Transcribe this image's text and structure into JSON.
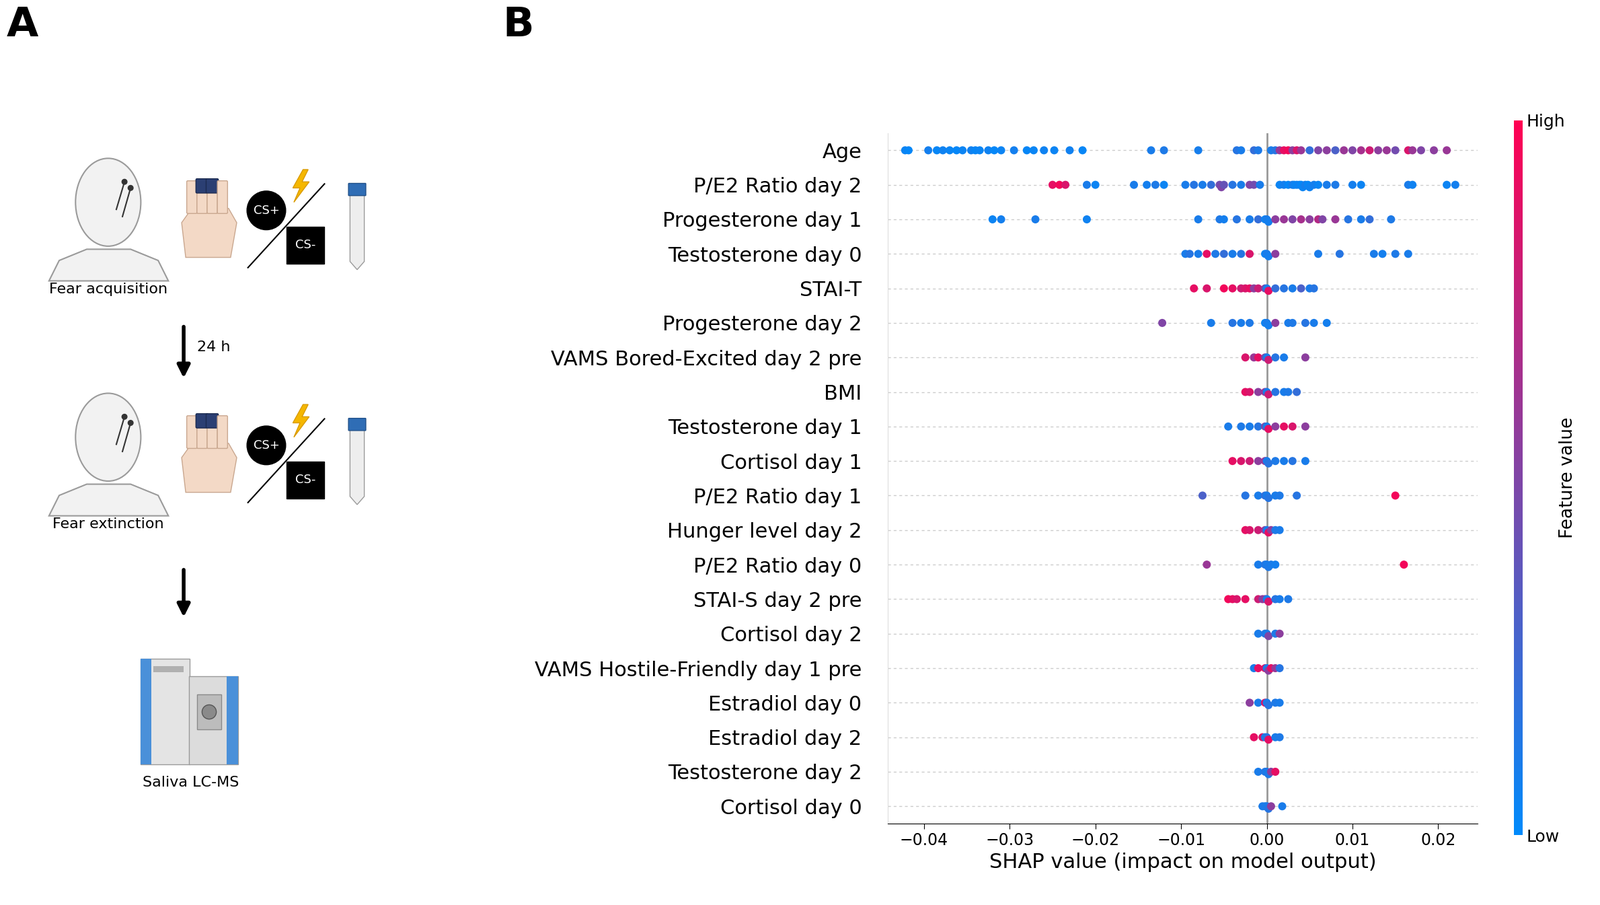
{
  "diagram": {
    "panel_label": "A",
    "stages": [
      {
        "label": "Fear acquisition",
        "cs_plus": "CS+",
        "cs_minus": "CS-"
      },
      {
        "label": "Fear extinction",
        "cs_plus": "CS+",
        "cs_minus": "CS-"
      }
    ],
    "interval": "24 h",
    "analysis": "Saliva LC-MS"
  },
  "chart_data": {
    "type": "scatter",
    "panel_label": "B",
    "xlabel": "SHAP value (impact on model output)",
    "xlim": [
      -0.0442,
      0.0246
    ],
    "xticks": [
      {
        "value": -0.04,
        "label": "−0.04"
      },
      {
        "value": -0.03,
        "label": "−0.03"
      },
      {
        "value": -0.02,
        "label": "−0.02"
      },
      {
        "value": -0.01,
        "label": "−0.01"
      },
      {
        "value": 0,
        "label": "0.00"
      },
      {
        "value": 0.01,
        "label": "0.01"
      },
      {
        "value": 0.02,
        "label": "0.02"
      }
    ],
    "grid": true,
    "categories": [
      "Age",
      "P/E2 Ratio day 2",
      "Progesterone day 1",
      "Testosterone day 0",
      "STAI-T",
      "Progesterone day 2",
      "VAMS Bored-Excited day 2 pre",
      "BMI",
      "Testosterone day 1",
      "Cortisol day 1",
      "P/E2 Ratio day 1",
      "Hunger level day 2",
      "P/E2 Ratio day 0",
      "STAI-S day 2 pre",
      "Cortisol day 2",
      "VAMS Hostile-Friendly day 1 pre",
      "Estradiol day 0",
      "Estradiol day 2",
      "Testosterone day 2",
      "Cortisol day 0"
    ],
    "shap_values": [
      [
        -0.0422,
        -0.0418,
        -0.0395,
        -0.0385,
        -0.0378,
        -0.037,
        -0.0362,
        -0.0355,
        -0.0345,
        -0.034,
        -0.0335,
        -0.0325,
        -0.0318,
        -0.031,
        -0.0295,
        -0.028,
        -0.0272,
        -0.026,
        -0.0248,
        -0.023,
        -0.0215,
        -0.0135,
        -0.012,
        -0.008,
        -0.0035,
        -0.003,
        -0.0015,
        -0.001,
        0.0005,
        0.001,
        0.0015,
        0.002,
        0.0025,
        0.003,
        0.0035,
        0.004,
        0.005,
        0.006,
        0.007,
        0.008,
        0.009,
        0.01,
        0.011,
        0.012,
        0.013,
        0.014,
        0.015,
        0.0165,
        0.017,
        0.018,
        0.0195,
        0.021
      ],
      [
        -0.025,
        -0.0242,
        -0.0235,
        -0.021,
        -0.02,
        -0.0155,
        -0.014,
        -0.013,
        -0.012,
        -0.0095,
        -0.0085,
        -0.0075,
        -0.0065,
        -0.0055,
        -0.0053,
        -0.005,
        -0.004,
        -0.003,
        -0.002,
        -0.0015,
        -0.0008,
        0.0015,
        0.002,
        0.0025,
        0.003,
        0.0032,
        0.0035,
        0.0038,
        0.004,
        0.0042,
        0.0045,
        0.0048,
        0.005,
        0.0055,
        0.006,
        0.007,
        0.008,
        0.01,
        0.011,
        0.0165,
        0.017,
        0.021,
        0.022
      ],
      [
        -0.032,
        -0.031,
        -0.027,
        -0.021,
        -0.008,
        -0.0055,
        -0.005,
        -0.0035,
        -0.002,
        -0.001,
        -0.0002,
        0.0,
        0.0002,
        0.001,
        0.002,
        0.003,
        0.004,
        0.005,
        0.006,
        0.0065,
        0.008,
        0.0095,
        0.011,
        0.012,
        0.0145
      ],
      [
        -0.0095,
        -0.009,
        -0.008,
        -0.007,
        -0.006,
        -0.005,
        -0.004,
        -0.003,
        -0.002,
        -0.0002,
        0.0,
        0.0002,
        0.001,
        0.006,
        0.0085,
        0.0125,
        0.0135,
        0.015,
        0.0165
      ],
      [
        -0.0085,
        -0.007,
        -0.005,
        -0.004,
        -0.003,
        -0.0025,
        -0.002,
        -0.0015,
        -0.001,
        -0.0002,
        0.0,
        0.0002,
        0.001,
        0.002,
        0.003,
        0.004,
        0.005,
        0.0055
      ],
      [
        -0.0122,
        -0.0065,
        -0.004,
        -0.003,
        -0.002,
        -0.0002,
        0.0,
        0.0002,
        0.001,
        0.0025,
        0.003,
        0.0045,
        0.0055,
        0.007
      ],
      [
        -0.0025,
        -0.0015,
        -0.001,
        -0.0002,
        0.0,
        0.0002,
        0.001,
        0.002,
        0.0045
      ],
      [
        -0.0025,
        -0.002,
        -0.001,
        -0.0002,
        0.0,
        0.0002,
        0.001,
        0.002,
        0.0025,
        0.0035
      ],
      [
        -0.0045,
        -0.003,
        -0.002,
        -0.001,
        -0.0002,
        0.0,
        0.0002,
        0.001,
        0.002,
        0.003,
        0.0045
      ],
      [
        -0.004,
        -0.003,
        -0.002,
        -0.001,
        -0.0002,
        0.0,
        0.0002,
        0.001,
        0.002,
        0.003,
        0.0045
      ],
      [
        -0.0075,
        -0.0025,
        -0.001,
        -0.0002,
        0.0,
        0.0002,
        0.001,
        0.0015,
        0.0035,
        0.015
      ],
      [
        -0.0025,
        -0.002,
        -0.001,
        -0.0002,
        0.0,
        0.0002,
        0.0005,
        0.001,
        0.0015
      ],
      [
        -0.007,
        -0.001,
        -0.0002,
        0.0,
        0.0002,
        0.0005,
        0.001,
        0.016
      ],
      [
        -0.0045,
        -0.004,
        -0.0035,
        -0.0025,
        -0.001,
        -0.0005,
        -0.0002,
        0.0,
        0.0002,
        0.001,
        0.0015,
        0.0025
      ],
      [
        -0.001,
        -0.0002,
        0.0,
        0.0002,
        0.001,
        0.0015
      ],
      [
        -0.0015,
        -0.001,
        -0.0002,
        0.0,
        0.0002,
        0.0005,
        0.001,
        0.0015
      ],
      [
        -0.002,
        -0.001,
        -0.0002,
        0.0,
        0.0002,
        0.001,
        0.0015
      ],
      [
        -0.0015,
        -0.0005,
        -0.0002,
        0.0,
        0.0002,
        0.001,
        0.0015
      ],
      [
        -0.001,
        -0.0002,
        0.0,
        0.0002,
        0.0005,
        0.001
      ],
      [
        -0.0005,
        -0.0002,
        0.0,
        0.0002,
        0.0005,
        0.0018
      ]
    ],
    "feature_values": [
      [
        0.05,
        0.02,
        0.08,
        0.03,
        0.06,
        0.04,
        0.02,
        0.05,
        0.07,
        0.03,
        0.04,
        0.06,
        0.02,
        0.05,
        0.08,
        0.03,
        0.04,
        0.06,
        0.05,
        0.07,
        0.03,
        0.1,
        0.12,
        0.09,
        0.15,
        0.1,
        0.2,
        0.12,
        0.1,
        0.15,
        0.6,
        0.9,
        0.95,
        0.55,
        0.85,
        0.6,
        0.2,
        0.5,
        0.55,
        0.3,
        0.6,
        0.5,
        0.65,
        0.8,
        0.55,
        0.6,
        0.45,
        0.85,
        0.6,
        0.5,
        0.55,
        0.6
      ],
      [
        0.9,
        0.95,
        0.85,
        0.1,
        0.05,
        0.1,
        0.08,
        0.12,
        0.05,
        0.1,
        0.15,
        0.1,
        0.2,
        0.45,
        0.5,
        0.4,
        0.15,
        0.1,
        0.5,
        0.45,
        0.1,
        0.05,
        0.08,
        0.03,
        0.1,
        0.06,
        0.04,
        0.07,
        0.02,
        0.05,
        0.09,
        0.03,
        0.06,
        0.08,
        0.04,
        0.1,
        0.12,
        0.08,
        0.05,
        0.1,
        0.06,
        0.05,
        0.08
      ],
      [
        0.05,
        0.08,
        0.1,
        0.06,
        0.1,
        0.12,
        0.08,
        0.15,
        0.1,
        0.2,
        0.05,
        0.1,
        0.08,
        0.55,
        0.6,
        0.5,
        0.65,
        0.55,
        0.7,
        0.5,
        0.6,
        0.15,
        0.1,
        0.2,
        0.12
      ],
      [
        0.1,
        0.15,
        0.1,
        0.9,
        0.12,
        0.2,
        0.1,
        0.15,
        0.85,
        0.05,
        0.1,
        0.08,
        0.55,
        0.1,
        0.15,
        0.1,
        0.08,
        0.12,
        0.1
      ],
      [
        0.9,
        0.85,
        0.95,
        0.9,
        0.8,
        0.85,
        0.9,
        0.55,
        0.8,
        0.5,
        0.1,
        0.9,
        0.2,
        0.15,
        0.1,
        0.3,
        0.1,
        0.15
      ],
      [
        0.5,
        0.1,
        0.15,
        0.1,
        0.12,
        0.05,
        0.1,
        0.08,
        0.55,
        0.1,
        0.12,
        0.15,
        0.1,
        0.08
      ],
      [
        0.85,
        0.6,
        0.9,
        0.5,
        0.1,
        0.8,
        0.15,
        0.1,
        0.55
      ],
      [
        0.9,
        0.85,
        0.55,
        0.6,
        0.1,
        0.8,
        0.15,
        0.1,
        0.12,
        0.2
      ],
      [
        0.1,
        0.12,
        0.1,
        0.15,
        0.5,
        0.1,
        0.9,
        0.55,
        0.9,
        0.85,
        0.55
      ],
      [
        0.9,
        0.85,
        0.8,
        0.55,
        0.6,
        0.1,
        0.15,
        0.12,
        0.1,
        0.15,
        0.1
      ],
      [
        0.3,
        0.15,
        0.1,
        0.2,
        0.1,
        0.15,
        0.1,
        0.12,
        0.15,
        0.95
      ],
      [
        0.9,
        0.85,
        0.8,
        0.6,
        0.1,
        0.9,
        0.55,
        0.12,
        0.1
      ],
      [
        0.6,
        0.1,
        0.15,
        0.1,
        0.12,
        0.1,
        0.08,
        0.95
      ],
      [
        0.95,
        0.9,
        0.85,
        0.9,
        0.8,
        0.55,
        0.6,
        0.1,
        0.85,
        0.15,
        0.1,
        0.12
      ],
      [
        0.1,
        0.15,
        0.1,
        0.5,
        0.12,
        0.55
      ],
      [
        0.1,
        0.9,
        0.85,
        0.1,
        0.55,
        0.9,
        0.6,
        0.15
      ],
      [
        0.55,
        0.1,
        0.85,
        0.1,
        0.15,
        0.12,
        0.1
      ],
      [
        0.9,
        0.85,
        0.1,
        0.15,
        0.9,
        0.1,
        0.12
      ],
      [
        0.1,
        0.15,
        0.1,
        0.12,
        0.55,
        0.9
      ],
      [
        0.1,
        0.12,
        0.1,
        0.15,
        0.55,
        0.1
      ]
    ],
    "colorbar": {
      "label": "Feature value",
      "low_label": "Low",
      "high_label": "High",
      "range": [
        0,
        1
      ],
      "colors": [
        "#008afb",
        "#ff0052"
      ]
    }
  }
}
